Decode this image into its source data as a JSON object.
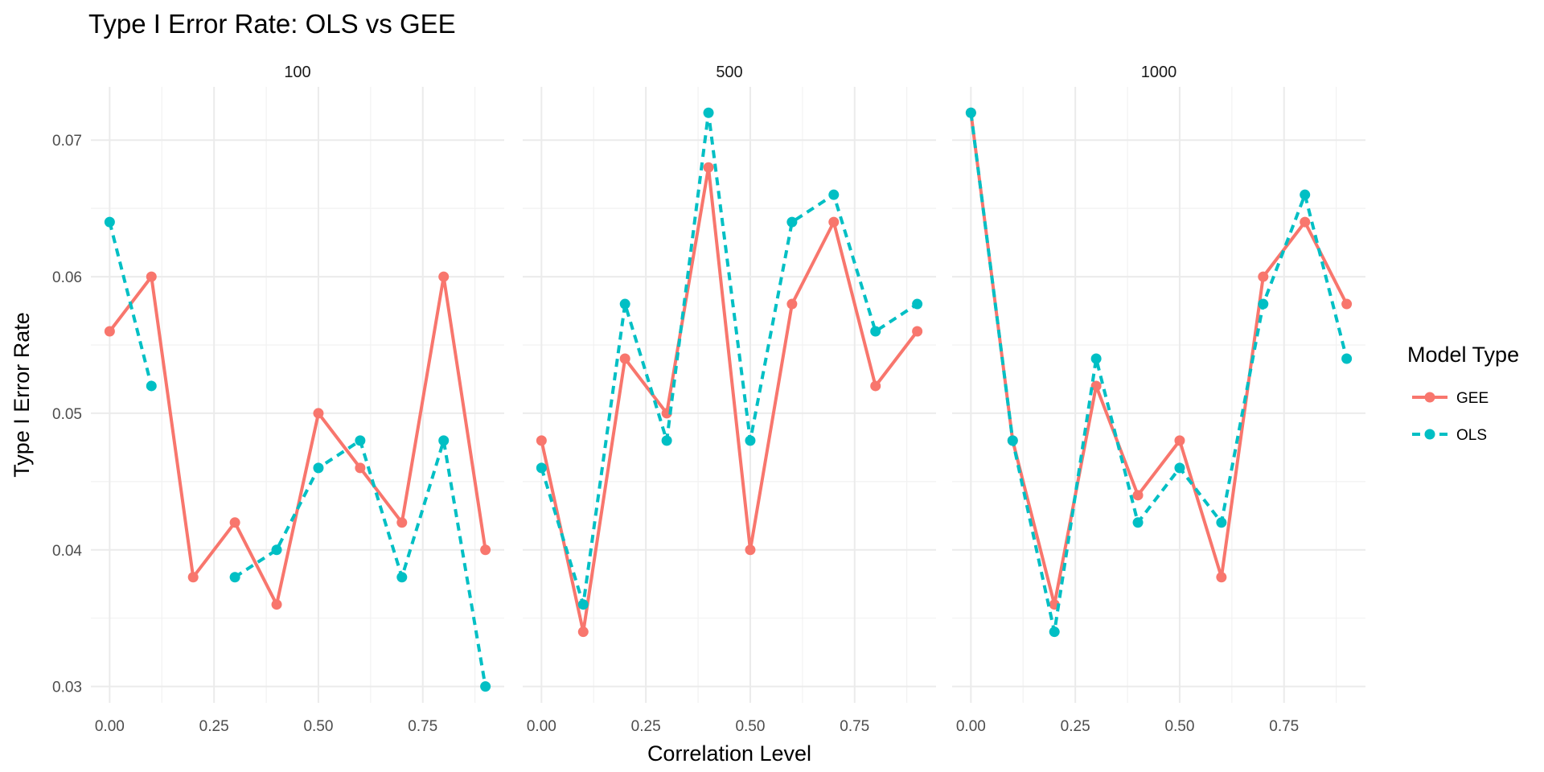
{
  "chart_data": {
    "type": "line",
    "title": "Type I Error Rate: OLS vs GEE",
    "xlabel": "Correlation Level",
    "ylabel": "Type I Error Rate",
    "legend_title": "Model Type",
    "legend_position": "right",
    "grid": true,
    "x": [
      0.0,
      0.1,
      0.2,
      0.3,
      0.4,
      0.5,
      0.6,
      0.7,
      0.8,
      0.9
    ],
    "xlim": [
      -0.045,
      0.945
    ],
    "ylim": [
      0.0288,
      0.0739
    ],
    "x_ticks": [
      0.0,
      0.25,
      0.5,
      0.75
    ],
    "x_tick_labels": [
      "0.00",
      "0.25",
      "0.50",
      "0.75"
    ],
    "y_ticks": [
      0.03,
      0.04,
      0.05,
      0.06,
      0.07
    ],
    "y_tick_labels": [
      "0.03",
      "0.04",
      "0.05",
      "0.06",
      "0.07"
    ],
    "panels": [
      {
        "label": "100",
        "series": [
          {
            "name": "GEE",
            "values": [
              0.056,
              0.06,
              0.038,
              0.042,
              0.036,
              0.05,
              0.046,
              0.042,
              0.06,
              0.04
            ]
          },
          {
            "name": "OLS",
            "values": [
              0.064,
              0.052,
              null,
              0.038,
              0.04,
              0.046,
              0.048,
              0.038,
              0.048,
              0.03
            ]
          }
        ]
      },
      {
        "label": "500",
        "series": [
          {
            "name": "GEE",
            "values": [
              0.048,
              0.034,
              0.054,
              0.05,
              0.068,
              0.04,
              0.058,
              0.064,
              0.052,
              0.056
            ]
          },
          {
            "name": "OLS",
            "values": [
              0.046,
              0.036,
              0.058,
              0.048,
              0.072,
              0.048,
              0.064,
              0.066,
              0.056,
              0.058
            ]
          }
        ]
      },
      {
        "label": "1000",
        "series": [
          {
            "name": "GEE",
            "values": [
              0.072,
              0.048,
              0.036,
              0.052,
              0.044,
              0.048,
              0.038,
              0.06,
              0.064,
              0.058
            ]
          },
          {
            "name": "OLS",
            "values": [
              0.072,
              0.048,
              0.034,
              0.054,
              0.042,
              0.046,
              0.042,
              0.058,
              0.066,
              0.054
            ]
          }
        ]
      }
    ],
    "series_styles": [
      {
        "name": "GEE",
        "color": "#F8766D",
        "dash": "solid"
      },
      {
        "name": "OLS",
        "color": "#00BFC4",
        "dash": "dashed"
      }
    ]
  }
}
